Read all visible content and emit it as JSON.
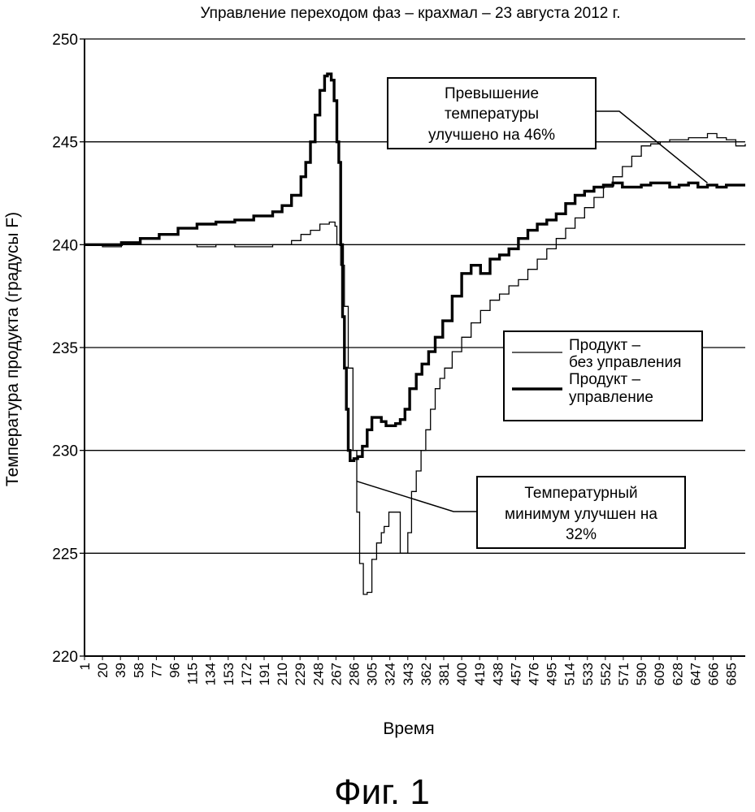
{
  "chart_data": {
    "type": "line",
    "title": "Управление переходом фаз – крахмал – 23 августа 2012 г.",
    "xlabel": "Время",
    "ylabel": "Температура продукта (градусы F)",
    "ylim": [
      220,
      250
    ],
    "yticks": [
      220,
      225,
      230,
      235,
      240,
      245,
      250
    ],
    "xlim": [
      1,
      700
    ],
    "xticks": [
      1,
      20,
      39,
      58,
      77,
      96,
      115,
      134,
      153,
      172,
      191,
      210,
      229,
      248,
      267,
      286,
      305,
      324,
      343,
      362,
      381,
      400,
      419,
      438,
      457,
      476,
      495,
      514,
      533,
      552,
      571,
      590,
      609,
      628,
      647,
      666,
      685
    ],
    "grid": "horizontal",
    "legend_position": "right",
    "series": [
      {
        "name": "Продукт – без управления",
        "style": "thin",
        "x": [
          1,
          20,
          40,
          60,
          80,
          100,
          120,
          140,
          160,
          180,
          200,
          220,
          230,
          240,
          250,
          260,
          266,
          268,
          272,
          276,
          280,
          285,
          289,
          292,
          296,
          300,
          305,
          310,
          315,
          318,
          323,
          330,
          335,
          342,
          343,
          347,
          352,
          357,
          362,
          367,
          372,
          377,
          382,
          390,
          400,
          410,
          420,
          430,
          440,
          450,
          460,
          470,
          480,
          490,
          500,
          510,
          520,
          530,
          540,
          550,
          560,
          570,
          580,
          590,
          600,
          610,
          620,
          630,
          640,
          650,
          660,
          670,
          680,
          690,
          700
        ],
        "y": [
          240.0,
          239.9,
          240.0,
          240.0,
          240.0,
          240.0,
          239.9,
          240.0,
          239.9,
          239.9,
          240.0,
          240.2,
          240.5,
          240.7,
          241.0,
          241.1,
          240.9,
          240.0,
          239.0,
          237.0,
          234.0,
          230.0,
          227.0,
          224.5,
          223.0,
          223.1,
          224.7,
          225.5,
          226.0,
          226.3,
          227.0,
          227.0,
          225.0,
          225.0,
          226.0,
          228.0,
          229.0,
          230.0,
          231.0,
          232.0,
          233.0,
          233.5,
          234.0,
          234.8,
          235.5,
          236.2,
          236.8,
          237.3,
          237.6,
          238.0,
          238.3,
          238.8,
          239.3,
          239.8,
          240.3,
          240.8,
          241.3,
          241.8,
          242.3,
          242.8,
          243.3,
          243.8,
          244.3,
          244.8,
          244.9,
          245.0,
          245.1,
          245.1,
          245.2,
          245.2,
          245.4,
          245.2,
          245.1,
          244.8,
          244.9
        ]
      },
      {
        "name": "Продукт – управление",
        "style": "thick",
        "x": [
          1,
          20,
          40,
          60,
          80,
          100,
          120,
          140,
          160,
          180,
          200,
          210,
          220,
          230,
          235,
          240,
          245,
          250,
          255,
          258,
          262,
          265,
          268,
          270,
          272,
          274,
          276,
          278,
          280,
          282,
          286,
          290,
          295,
          300,
          305,
          310,
          315,
          320,
          325,
          330,
          335,
          340,
          345,
          352,
          358,
          365,
          372,
          380,
          390,
          400,
          410,
          420,
          430,
          440,
          450,
          460,
          470,
          480,
          490,
          500,
          510,
          520,
          530,
          540,
          550,
          560,
          570,
          580,
          590,
          600,
          610,
          620,
          630,
          640,
          650,
          660,
          670,
          680,
          690,
          700
        ],
        "y": [
          240.0,
          240.0,
          240.1,
          240.3,
          240.5,
          240.8,
          241.0,
          241.1,
          241.2,
          241.4,
          241.6,
          241.9,
          242.4,
          243.3,
          244.0,
          245.0,
          246.3,
          247.5,
          248.2,
          248.3,
          248.0,
          247.0,
          245.0,
          244.0,
          240.0,
          236.5,
          234.0,
          232.0,
          230.0,
          229.5,
          229.6,
          229.7,
          230.2,
          231.0,
          231.6,
          231.6,
          231.4,
          231.2,
          231.2,
          231.3,
          231.5,
          232.0,
          233.0,
          233.7,
          234.2,
          234.8,
          235.5,
          236.3,
          237.5,
          238.6,
          239.0,
          238.6,
          239.3,
          239.5,
          239.8,
          240.3,
          240.7,
          241.0,
          241.2,
          241.5,
          242.0,
          242.4,
          242.6,
          242.8,
          242.9,
          243.0,
          242.8,
          242.8,
          242.9,
          243.0,
          243.0,
          242.8,
          242.9,
          243.0,
          242.8,
          242.9,
          242.8,
          242.9,
          242.9,
          242.9
        ]
      }
    ],
    "annotations": [
      {
        "id": "overshoot",
        "lines": [
          "Превышение",
          "температуры",
          "улучшено на 46%"
        ],
        "target_x": 660,
        "target_y": 243.0
      },
      {
        "id": "minimum",
        "lines": [
          "Температурный",
          "минимум улучшен на",
          "32%"
        ],
        "target_x": 289,
        "target_y": 228.5
      }
    ],
    "legend_lines": [
      [
        "Продукт –",
        "без управления"
      ],
      [
        "Продукт –",
        "управление"
      ]
    ],
    "figure_caption": "Фиг. 1"
  }
}
